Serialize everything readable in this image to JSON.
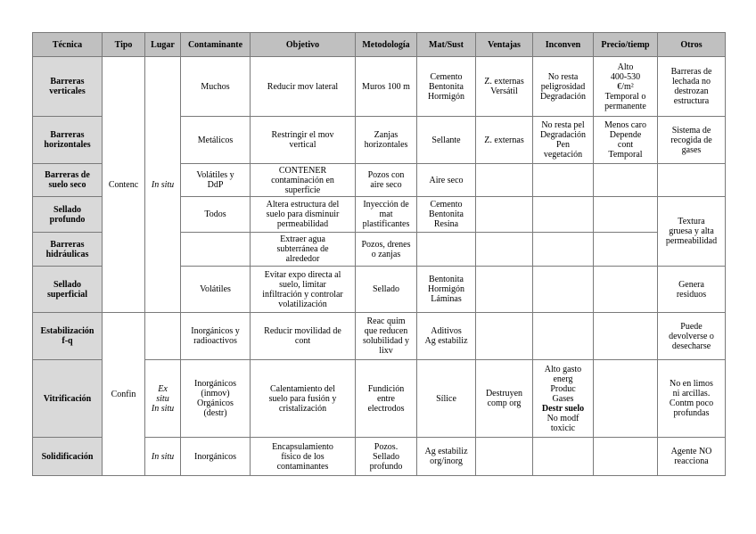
{
  "header": [
    "Técnica",
    "Tipo",
    "Lugar",
    "Contaminante",
    "Objetivo",
    "Metodología",
    "Mat/Sust",
    "Ventajas",
    "Inconven",
    "Precio/tiemp",
    "Otros"
  ],
  "groups": {
    "contenc": "Contenc",
    "confin": "Confin",
    "in_situ": "In situ",
    "ex_in_situ": "Ex\nsitu\nIn situ"
  },
  "rows": [
    {
      "tecnica": "Barreras\nverticales",
      "contaminante": "Muchos",
      "objetivo": "Reducir mov lateral",
      "metodologia": "Muros 100 m",
      "mat": "Cemento\nBentonita\nHormigón",
      "ventajas": "Z. externas\nVersátil",
      "inconven": "No resta\npeligrosidad\nDegradación",
      "precio": "Alto\n400-530\n€/m²\nTemporal o\npermanente",
      "otros": "Barreras de\nlechada no\ndestrozan\nestructura"
    },
    {
      "tecnica": "Barreras\nhorizontales",
      "contaminante": "Metálicos",
      "objetivo": "Restringir el mov\nvertical",
      "metodologia": "Zanjas\nhorizontales",
      "mat": "Sellante",
      "ventajas": "Z. externas",
      "inconven": "No resta pel\nDegradación\nPen\nvegetación",
      "precio": "Menos caro\nDepende\ncont\nTemporal",
      "otros": "Sistema de\nrecogida de\ngases"
    },
    {
      "tecnica": "Barreras de\nsuelo seco",
      "contaminante": "Volátiles y\nDdP",
      "objetivo": "CONTENER\ncontaminación en\nsuperficie",
      "metodologia": "Pozos con\naire seco",
      "mat": "Aire seco",
      "ventajas": "",
      "inconven": "",
      "precio": "",
      "otros": ""
    },
    {
      "tecnica": "Sellado\nprofundo",
      "contaminante": "Todos",
      "objetivo": "Altera estructura del\nsuelo para disminuir\npermeabilidad",
      "metodologia": "Inyección de\nmat\nplastificantes",
      "mat": "Cemento\nBentonita\nResina",
      "ventajas": "",
      "inconven": "",
      "precio": "",
      "otros": "Textura\ngruesa y alta\npermeabilidad"
    },
    {
      "tecnica": "Barreras\nhidráulicas",
      "contaminante": "",
      "objetivo": "Extraer agua\nsubterránea de\nalrededor",
      "metodologia": "Pozos, drenes\no zanjas",
      "mat": "",
      "ventajas": "",
      "inconven": "",
      "precio": ""
    },
    {
      "tecnica": "Sellado\nsuperficial",
      "contaminante": "Volátiles",
      "objetivo": "Evitar expo directa al\nsuelo, limitar\ninfiltración y controlar\nvolatilización",
      "metodologia": "Sellado",
      "mat": "Bentonita\nHormigón\nLáminas",
      "ventajas": "",
      "inconven": "",
      "precio": "",
      "otros": "Genera\nresiduos"
    },
    {
      "tecnica": "Estabilización\nf-q",
      "lugar": "",
      "contaminante": "Inorgánicos y\nradioactivos",
      "objetivo": "Reducir movilidad de\ncont",
      "metodologia": "Reac quim\nque reducen\nsolubilidad y\nlixv",
      "mat": "Aditivos\nAg estabiliz",
      "ventajas": "",
      "inconven": "",
      "precio": "",
      "otros": "Puede\ndevolverse o\ndesecharse"
    },
    {
      "tecnica": "Vitrificación",
      "contaminante": "Inorgánicos\n(inmov)\nOrgánicos\n(destr)",
      "objetivo": "Calentamiento del\nsuelo para fusión y\ncristalización",
      "metodologia": "Fundición\nentre\nelectrodos",
      "mat": "Sílice",
      "ventajas": "Destruyen\ncomp org",
      "inconven": "Alto gasto\nenerg\nProduc\nGases",
      "inconven_bold": "Destr suelo",
      "inconven_after": "No modf\ntoxicic",
      "precio": "",
      "otros": "No en limos\nni arcillas.\nContm poco\nprofundas"
    },
    {
      "tecnica": "Solidificación",
      "contaminante": "Inorgánicos",
      "objetivo": "Encapsulamiento\nfísico de los\ncontaminantes",
      "metodologia": "Pozos.\nSellado\nprofundo",
      "mat": "Ag estabiliz\norg/inorg",
      "ventajas": "",
      "inconven": "",
      "precio": "",
      "otros": "Agente NO\nreacciona"
    }
  ]
}
